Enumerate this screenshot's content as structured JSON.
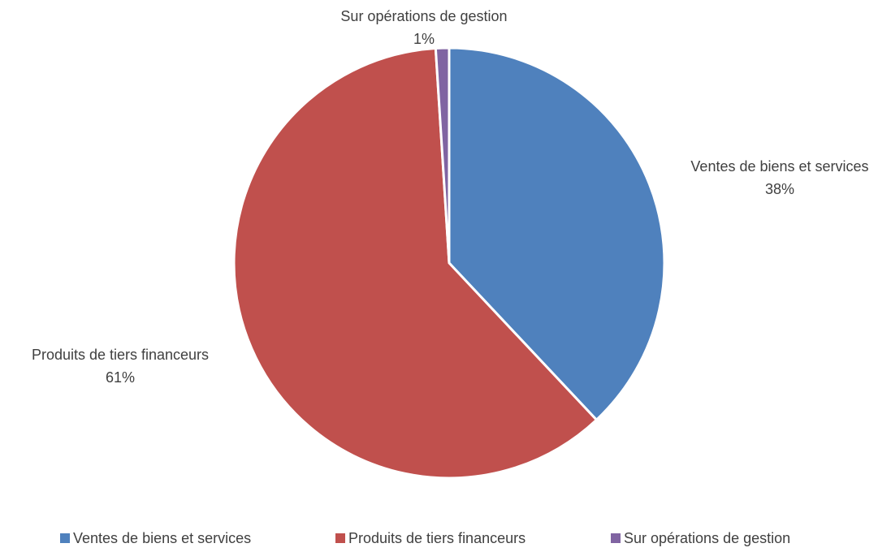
{
  "chart_data": {
    "type": "pie",
    "categories": [
      "Ventes de biens et services",
      "Produits de tiers financeurs",
      "Sur opérations de gestion"
    ],
    "values": [
      38,
      61,
      1
    ],
    "value_labels": [
      "38%",
      "61%",
      "1%"
    ],
    "colors": [
      "#4f81bd",
      "#c0504d",
      "#8064a2"
    ],
    "legend": "bottom"
  }
}
